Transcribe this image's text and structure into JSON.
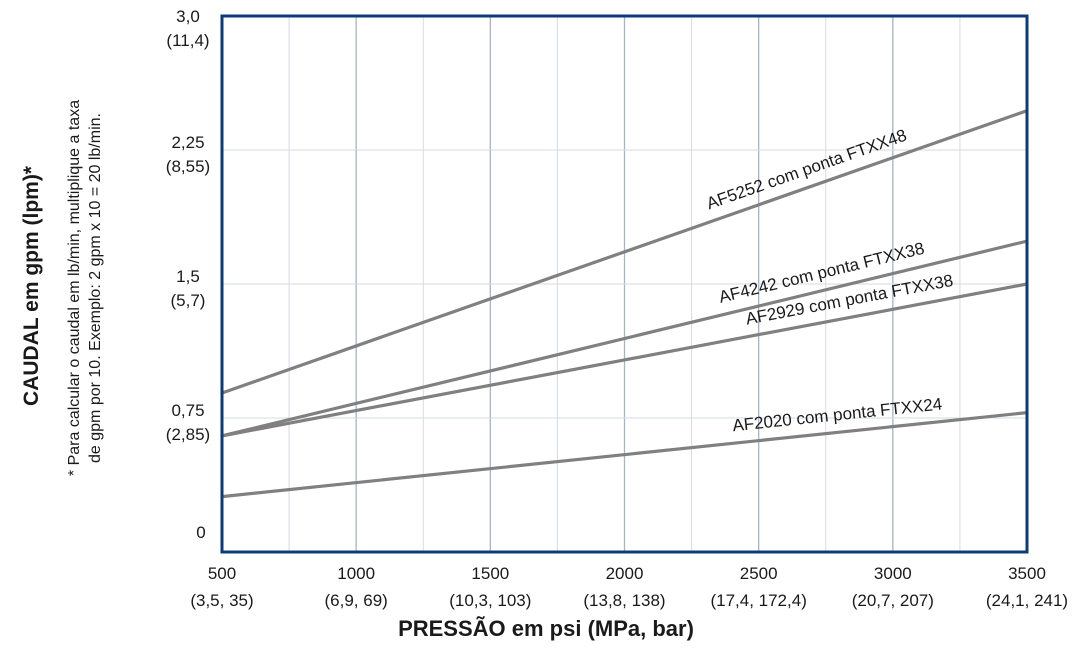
{
  "chart_data": {
    "type": "line",
    "xlabel": "PRESSÃO em psi (MPa, bar)",
    "ylabel": "CAUDAL em gpm (lpm)*",
    "note_lines": [
      "* Para calcular o caudal em lb/min, multiplique a taxa",
      "de gpm por 10. Exemplo: 2 gpm x 10 = 20 lb/min."
    ],
    "xlim": [
      500,
      3500
    ],
    "ylim": [
      0,
      3.0
    ],
    "x_ticks": [
      500,
      1000,
      1500,
      2000,
      2500,
      3000,
      3500
    ],
    "x_tick_labels": [
      {
        "main": "500",
        "sub": "(3,5, 35)"
      },
      {
        "main": "1000",
        "sub": "(6,9, 69)"
      },
      {
        "main": "1500",
        "sub": "(10,3, 103)"
      },
      {
        "main": "2000",
        "sub": "(13,8, 138)"
      },
      {
        "main": "2500",
        "sub": "(17,4, 172,4)"
      },
      {
        "main": "3000",
        "sub": "(20,7, 207)"
      },
      {
        "main": "3500",
        "sub": "(24,1, 241)"
      }
    ],
    "y_ticks": [
      0,
      0.75,
      1.5,
      2.25,
      3.0
    ],
    "y_tick_labels": [
      {
        "main": "0",
        "sub": ""
      },
      {
        "main": "0,75",
        "sub": "(2,85)"
      },
      {
        "main": "1,5",
        "sub": "(5,7)"
      },
      {
        "main": "2,25",
        "sub": "(8,55)"
      },
      {
        "main": "3,0",
        "sub": "(11,4)"
      }
    ],
    "grid": true,
    "colors": {
      "frame": "#0d3b7a",
      "grid_major": "#a7b4c7",
      "grid_minor": "#d3dbe6",
      "line": "#808080"
    },
    "series": [
      {
        "name": "AF5252 com ponta FTXX48",
        "x": [
          500,
          3500
        ],
        "y": [
          0.89,
          2.47
        ]
      },
      {
        "name": "AF4242 com ponta FTXX38",
        "x": [
          500,
          3500
        ],
        "y": [
          0.65,
          1.74
        ]
      },
      {
        "name": "AF2929 com ponta FTXX38",
        "x": [
          500,
          3500
        ],
        "y": [
          0.65,
          1.5
        ]
      },
      {
        "name": "AF2020 com ponta FTXX24",
        "x": [
          500,
          3500
        ],
        "y": [
          0.31,
          0.78
        ]
      }
    ]
  }
}
